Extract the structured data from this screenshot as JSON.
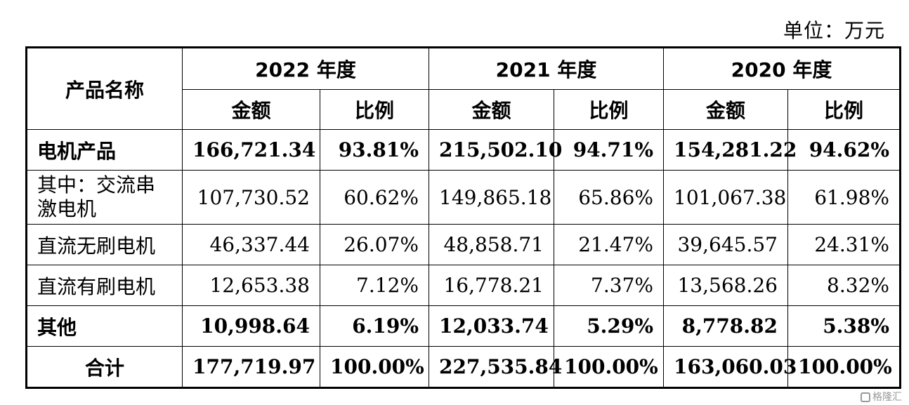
{
  "unit_label": "单位：万元",
  "header": {
    "product_name": "产品名称",
    "years": [
      "2022 年度",
      "2021 年度",
      "2020 年度"
    ],
    "amount": "金额",
    "ratio": "比例"
  },
  "rows": [
    {
      "name": "电机产品",
      "v": [
        "166,721.34",
        "93.81%",
        "215,502.10",
        "94.71%",
        "154,281.22",
        "94.62%"
      ]
    },
    {
      "name": "其中：交流串激电机",
      "v": [
        "107,730.52",
        "60.62%",
        "149,865.18",
        "65.86%",
        "101,067.38",
        "61.98%"
      ]
    },
    {
      "name": "直流无刷电机",
      "v": [
        "46,337.44",
        "26.07%",
        "48,858.71",
        "21.47%",
        "39,645.57",
        "24.31%"
      ]
    },
    {
      "name": "直流有刷电机",
      "v": [
        "12,653.38",
        "7.12%",
        "16,778.21",
        "7.37%",
        "13,568.26",
        "8.32%"
      ]
    },
    {
      "name": "其他",
      "v": [
        "10,998.64",
        "6.19%",
        "12,033.74",
        "5.29%",
        "8,778.82",
        "5.38%"
      ]
    },
    {
      "name": "合计",
      "v": [
        "177,719.97",
        "100.00%",
        "227,535.84",
        "100.00%",
        "163,060.03",
        "100.00%"
      ]
    }
  ],
  "watermark": "格隆汇"
}
